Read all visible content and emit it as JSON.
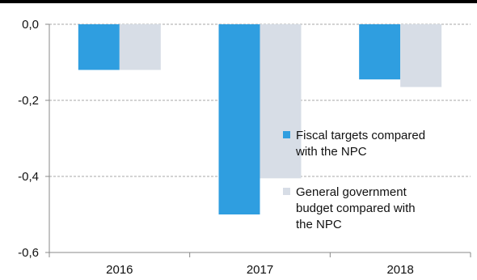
{
  "chart_data": {
    "type": "bar",
    "categories": [
      "2016",
      "2017",
      "2018"
    ],
    "series": [
      {
        "name": "Fiscal targets compared with the NPC",
        "values": [
          -0.12,
          -0.5,
          -0.145
        ],
        "color": "#2f9ee0"
      },
      {
        "name": "General government budget compared with the NPC",
        "values": [
          -0.12,
          -0.405,
          -0.165
        ],
        "color": "#d7dde6"
      }
    ],
    "ylim": [
      -0.6,
      0.0
    ],
    "yticks": [
      "0,0",
      "-0,2",
      "-0,4",
      "-0,6"
    ],
    "yticks_values": [
      0.0,
      -0.2,
      -0.4,
      -0.6
    ],
    "grid": true,
    "legend": {
      "placement": "center-right",
      "lines": [
        [
          "Fiscal targets compared",
          "with the NPC"
        ],
        [
          "General government",
          "budget compared with",
          "the NPC"
        ]
      ]
    },
    "title": "",
    "xlabel": "",
    "ylabel": ""
  }
}
